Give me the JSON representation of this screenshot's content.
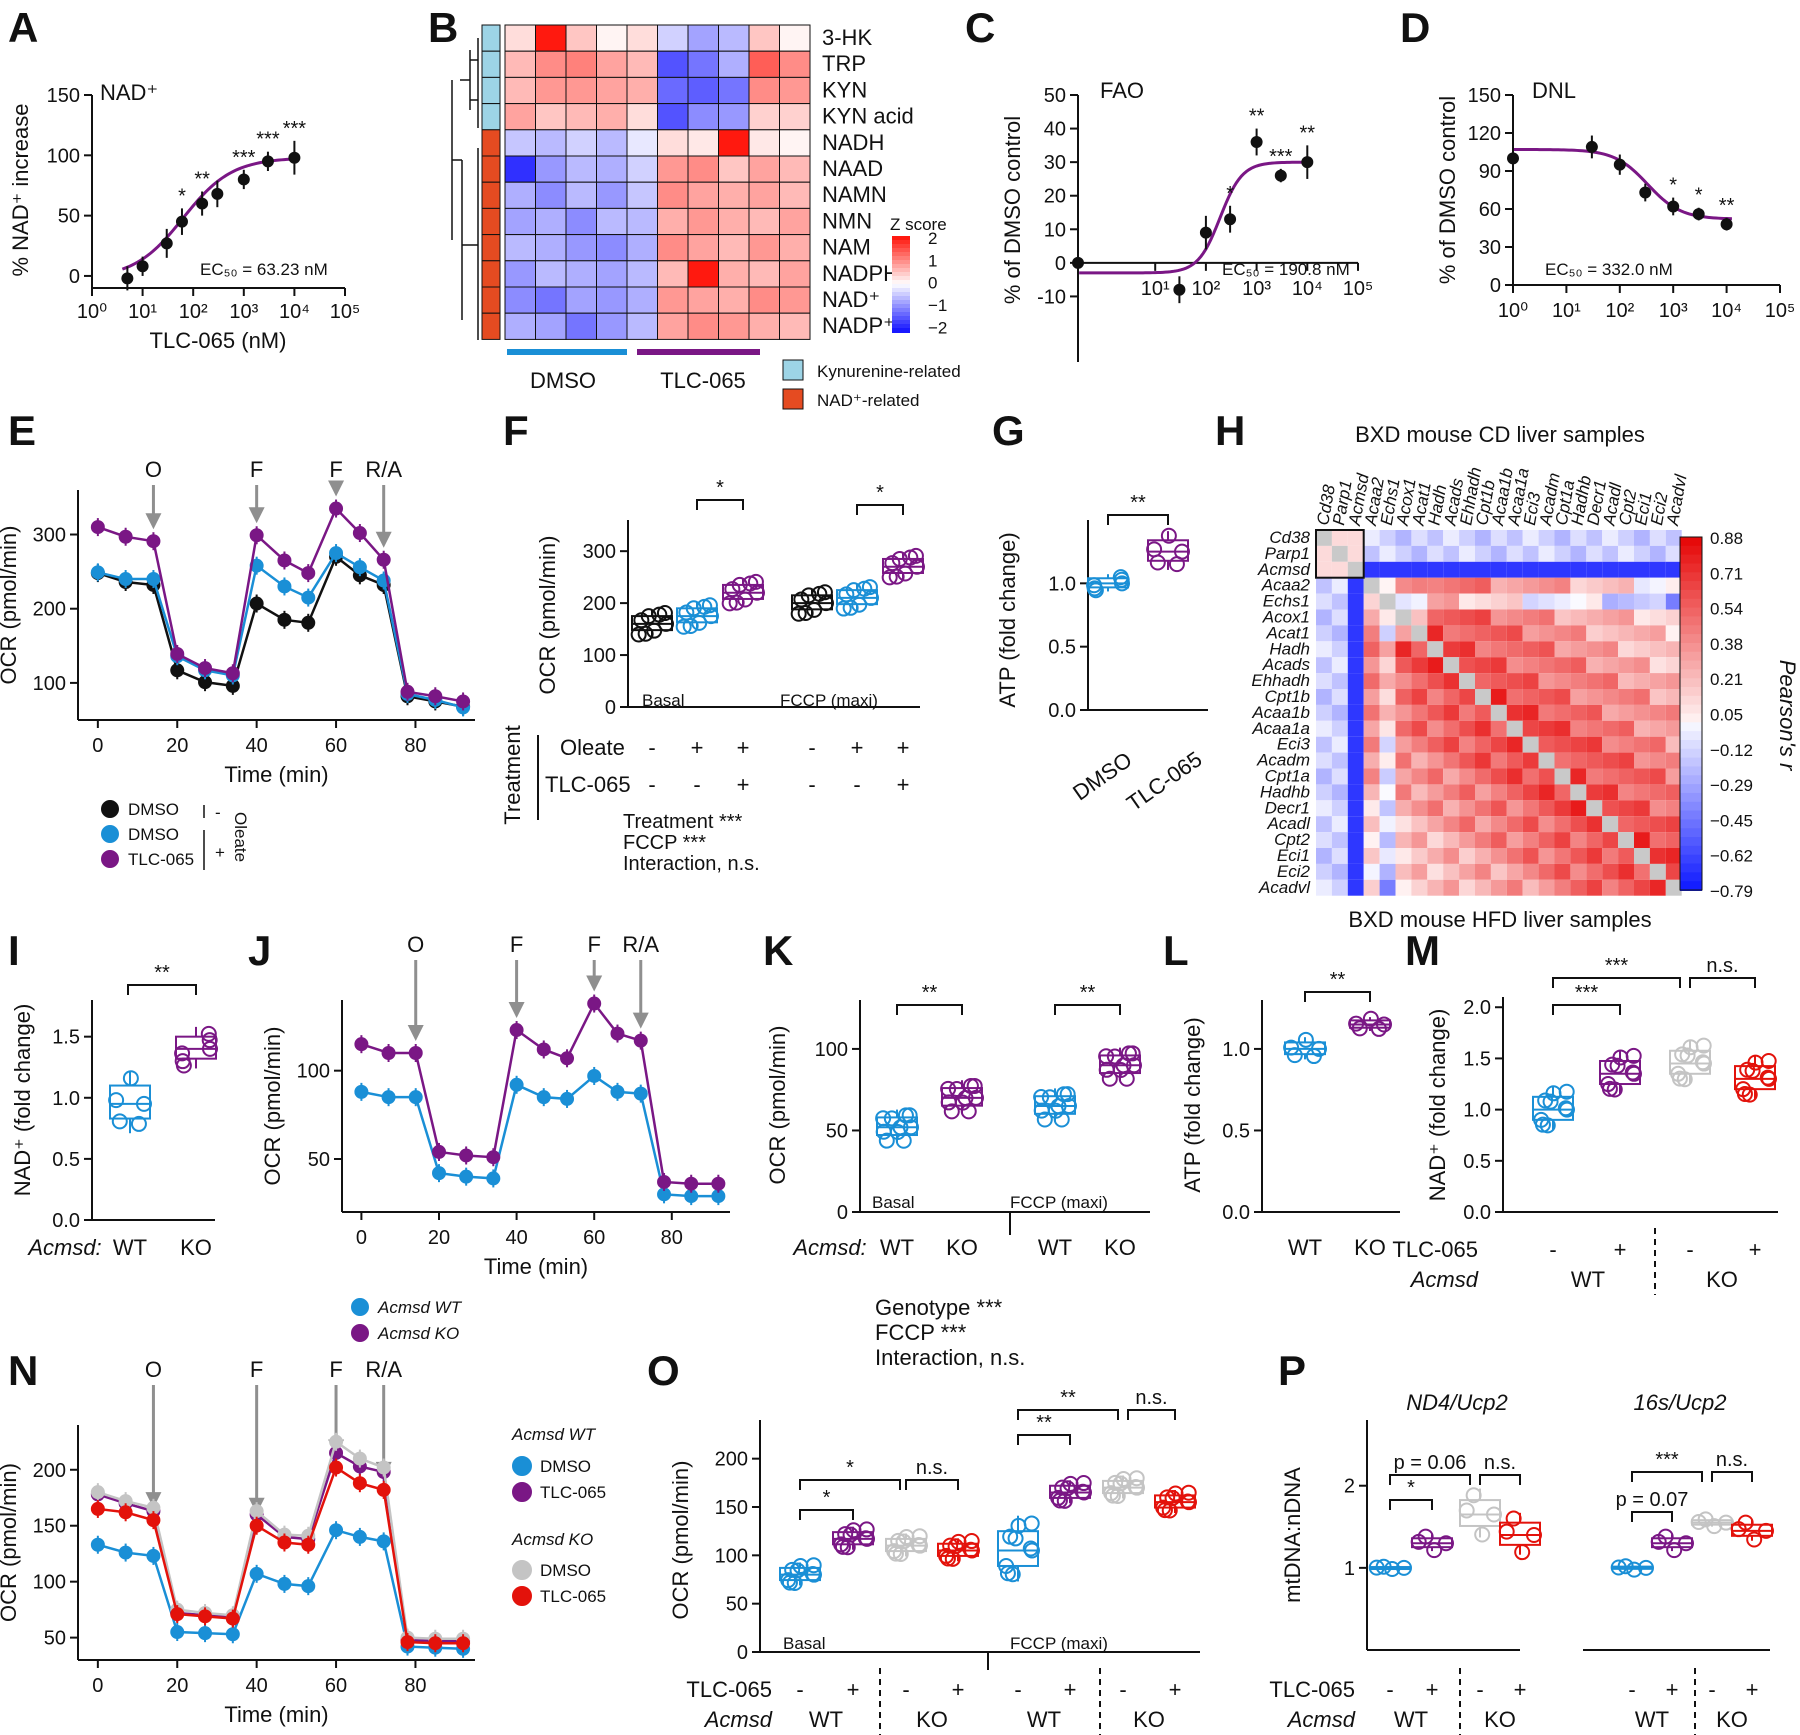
{
  "figure_colors": {
    "wt_dmso": "#1a8fd6",
    "ko_dmso": "#c4c4c4",
    "tlc": "#7a1785",
    "ko_tlc": "#e3120b",
    "black": "#111111",
    "purple_line": "#7a1785",
    "arrow": "#8f8f8f",
    "kyn": "#9dd4e6",
    "nad": "#e54b21"
  },
  "chart_data": [
    {
      "panel": "A",
      "type": "line",
      "title": "NAD⁺",
      "xlabel": "TLC-065 (nM)",
      "ylabel": "% NAD⁺ increase",
      "xscale": "log",
      "xlim": [
        1,
        100000
      ],
      "ylim": [
        -10,
        150
      ],
      "xticks": [
        "10⁰",
        "10¹",
        "10²",
        "10³",
        "10⁴",
        "10⁵"
      ],
      "yticks": [
        "0",
        "50",
        "100",
        "150"
      ],
      "x": [
        5,
        10,
        30,
        60,
        150,
        300,
        1000,
        3000,
        10000
      ],
      "y": [
        -2,
        8,
        27,
        45,
        60,
        68,
        80,
        95,
        98
      ],
      "err": [
        10,
        8,
        12,
        11,
        10,
        11,
        8,
        8,
        14
      ],
      "stars": [
        "",
        "",
        "",
        "*",
        "**",
        "",
        "***",
        "***",
        "***"
      ],
      "annotation": "EC₅₀ = 63.23 nM"
    },
    {
      "panel": "B",
      "type": "heatmap",
      "title": "Z score",
      "rows": [
        "3-HK",
        "TRP",
        "KYN",
        "KYN acid",
        "NADH",
        "NAAD",
        "NAMN",
        "NMN",
        "NAM",
        "NADPH",
        "NAD⁺",
        "NADP⁺"
      ],
      "row_groups": [
        "Kynurenine-related",
        "Kynurenine-related",
        "Kynurenine-related",
        "Kynurenine-related",
        "NAD⁺-related",
        "NAD⁺-related",
        "NAD⁺-related",
        "NAD⁺-related",
        "NAD⁺-related",
        "NAD⁺-related",
        "NAD⁺-related",
        "NAD⁺-related"
      ],
      "groups": [
        "DMSO",
        "TLC-065"
      ],
      "scale_ticks": [
        "2",
        "1",
        "0",
        "−1",
        "−2"
      ],
      "legend": [
        "Kynurenine-related",
        "NAD⁺-related"
      ],
      "values": [
        [
          0.3,
          2,
          0.5,
          0.1,
          0.3,
          -0.4,
          -0.8,
          -0.6,
          0.5,
          0.1
        ],
        [
          0.6,
          1.0,
          1.1,
          0.8,
          0.6,
          -1.5,
          -1.2,
          -0.7,
          1.4,
          1.0
        ],
        [
          0.6,
          0.9,
          0.9,
          0.8,
          0.7,
          -1.3,
          -1.4,
          -1.2,
          1.0,
          0.9
        ],
        [
          0.8,
          0.5,
          0.6,
          0.7,
          0.3,
          -1.5,
          -1.0,
          -0.9,
          0.4,
          0.4
        ],
        [
          -0.5,
          -0.6,
          -0.4,
          -0.6,
          -0.2,
          0.3,
          0.2,
          2,
          0.2,
          0.1
        ],
        [
          -1.8,
          -0.9,
          -0.6,
          -0.7,
          -0.4,
          0.9,
          1.0,
          0.5,
          0.8,
          0.6
        ],
        [
          -0.7,
          -1.0,
          -0.6,
          -0.9,
          -0.5,
          1.0,
          0.8,
          0.7,
          0.8,
          0.6
        ],
        [
          -0.8,
          -0.7,
          -1.0,
          -0.6,
          -0.6,
          0.7,
          0.9,
          0.7,
          0.6,
          0.8
        ],
        [
          -0.6,
          -0.7,
          -0.9,
          -1.0,
          -0.7,
          1.0,
          0.8,
          0.6,
          0.9,
          0.7
        ],
        [
          -0.9,
          -0.6,
          -0.7,
          -0.8,
          -0.6,
          0.6,
          2,
          0.7,
          0.6,
          0.8
        ],
        [
          -1.0,
          -1.2,
          -0.8,
          -0.9,
          -0.7,
          0.9,
          0.8,
          0.7,
          1.0,
          0.9
        ],
        [
          -0.7,
          -0.8,
          -1.2,
          -0.9,
          -0.6,
          0.8,
          1.0,
          0.9,
          0.7,
          0.6
        ]
      ]
    },
    {
      "panel": "C",
      "type": "line",
      "title": "FAO",
      "ylabel": "% of DMSO control",
      "xscale": "log",
      "xlim": [
        0.3,
        100000
      ],
      "ylim": [
        -20,
        50
      ],
      "xticks": [
        "10¹",
        "10²",
        "10³",
        "10⁴",
        "10⁵"
      ],
      "yticks": [
        "-10",
        "0",
        "10",
        "20",
        "30",
        "40",
        "50"
      ],
      "x": [
        0.3,
        30,
        100,
        300,
        1000,
        3000,
        10000
      ],
      "y": [
        0,
        -8,
        9,
        13,
        36,
        26,
        30
      ],
      "err": [
        3,
        4,
        5,
        4,
        4,
        2,
        5
      ],
      "stars": [
        "",
        "",
        "",
        "*",
        "**",
        "***",
        "**"
      ],
      "annotation": "EC₅₀ = 190.8 nM"
    },
    {
      "panel": "D",
      "type": "line",
      "title": "DNL",
      "ylabel": "% of DMSO control",
      "xscale": "log",
      "xlim": [
        1,
        100000
      ],
      "ylim": [
        0,
        150
      ],
      "xticks": [
        "10⁰",
        "10¹",
        "10²",
        "10³",
        "10⁴",
        "10⁵"
      ],
      "yticks": [
        "0",
        "30",
        "60",
        "90",
        "120",
        "150"
      ],
      "x": [
        1,
        30,
        100,
        300,
        1000,
        3000,
        10000
      ],
      "y": [
        100,
        109,
        95,
        73,
        62,
        56,
        48
      ],
      "err": [
        10,
        9,
        8,
        7,
        7,
        5,
        5
      ],
      "stars": [
        "",
        "",
        "",
        "",
        "*",
        "*",
        "**"
      ],
      "annotation": "EC₅₀ = 332.0 nM"
    },
    {
      "panel": "E",
      "type": "line",
      "xlabel": "Time (min)",
      "ylabel": "OCR (pmol/min)",
      "xlim": [
        -5,
        95
      ],
      "ylim": [
        50,
        360
      ],
      "xticks": [
        "0",
        "20",
        "40",
        "60",
        "80"
      ],
      "yticks": [
        "100",
        "200",
        "300"
      ],
      "events": [
        "O",
        "F",
        "F",
        "R/A"
      ],
      "event_x": [
        14,
        40,
        60,
        72
      ],
      "x": [
        0,
        7,
        14,
        20,
        27,
        34,
        40,
        47,
        53,
        60,
        66,
        72,
        78,
        85,
        92
      ],
      "series": [
        {
          "name": "DMSO",
          "values": [
            248,
            236,
            232,
            117,
            101,
            96,
            207,
            185,
            181,
            270,
            245,
            232,
            82,
            75,
            68
          ]
        },
        {
          "name": "DMSO",
          "values": [
            249,
            240,
            240,
            136,
            117,
            110,
            258,
            230,
            215,
            275,
            256,
            238,
            85,
            77,
            67
          ]
        },
        {
          "name": "TLC-065",
          "values": [
            310,
            297,
            291,
            139,
            120,
            113,
            299,
            265,
            248,
            335,
            302,
            266,
            88,
            82,
            75
          ]
        }
      ],
      "legend": [
        "DMSO",
        "DMSO",
        "TLC-065"
      ],
      "legend_groups": [
        "-",
        "+"
      ],
      "legend_group_title": "Oleate"
    },
    {
      "panel": "F",
      "type": "box",
      "ylabel": "OCR (pmol/min)",
      "ylim": [
        0,
        360
      ],
      "yticks": [
        "0",
        "100",
        "200",
        "300"
      ],
      "sections": [
        "Basal",
        "FCCP (maxi)"
      ],
      "row_labels": [
        "Oleate",
        "TLC-065"
      ],
      "side_label": "Treatment",
      "row_values": [
        "-",
        "+",
        "+",
        "-",
        "+",
        "+"
      ],
      "row_values2": [
        "-",
        "-",
        "+",
        "-",
        "-",
        "+"
      ],
      "medians": [
        160,
        175,
        220,
        200,
        210,
        270
      ],
      "stars": [
        "*",
        "*"
      ],
      "stats": [
        "Treatment ***",
        "FCCP ***",
        "Interaction, n.s."
      ]
    },
    {
      "panel": "G",
      "type": "box",
      "ylabel": "ATP (fold change)",
      "ylim": [
        0,
        1.5
      ],
      "yticks": [
        "0.0",
        "0.5",
        "1.0"
      ],
      "categories": [
        "DMSO",
        "TLC-065"
      ],
      "medians": [
        1.0,
        1.25
      ],
      "stars": "**"
    },
    {
      "panel": "H",
      "type": "heatmap",
      "title": "BXD mouse CD liver samples",
      "bottom_title": "BXD mouse HFD liver samples",
      "genes": [
        "Cd38",
        "Parp1",
        "Acmsd",
        "Acaa2",
        "Echs1",
        "Acox1",
        "Acat1",
        "Hadh",
        "Acads",
        "Ehhadh",
        "Cpt1b",
        "Acaa1b",
        "Acaa1a",
        "Eci3",
        "Acadm",
        "Cpt1a",
        "Hadhb",
        "Decr1",
        "Acadl",
        "Cpt2",
        "Eci1",
        "Eci2",
        "Acadvl"
      ],
      "colorbar_label": "Pearson's r",
      "scale_ticks": [
        "0.88",
        "0.71",
        "0.54",
        "0.38",
        "0.21",
        "0.05",
        "−0.12",
        "−0.29",
        "−0.45",
        "−0.62",
        "−0.79"
      ]
    },
    {
      "panel": "I",
      "type": "box",
      "ylabel": "NAD⁺ (fold change)",
      "ylim": [
        0,
        1.8
      ],
      "yticks": [
        "0.0",
        "0.5",
        "1.0",
        "1.5"
      ],
      "categories": [
        "WT",
        "KO"
      ],
      "group_label": "Acmsd:",
      "medians": [
        0.95,
        1.4
      ],
      "stars": "**"
    },
    {
      "panel": "J",
      "type": "line",
      "xlabel": "Time (min)",
      "ylabel": "OCR (pmol/min)",
      "ylim": [
        20,
        140
      ],
      "xticks": [
        "0",
        "20",
        "40",
        "60",
        "80"
      ],
      "yticks": [
        "50",
        "100"
      ],
      "events": [
        "O",
        "F",
        "F",
        "R/A"
      ],
      "x": [
        0,
        7,
        14,
        20,
        27,
        34,
        40,
        47,
        53,
        60,
        66,
        72,
        78,
        85,
        92
      ],
      "series": [
        {
          "name": "Acmsd WT",
          "values": [
            88,
            85,
            85,
            42,
            40,
            39,
            92,
            85,
            84,
            97,
            88,
            87,
            30,
            29,
            29
          ]
        },
        {
          "name": "Acmsd KO",
          "values": [
            115,
            110,
            110,
            54,
            52,
            51,
            123,
            112,
            107,
            138,
            121,
            117,
            37,
            36,
            36
          ]
        }
      ]
    },
    {
      "panel": "K",
      "type": "box",
      "ylabel": "OCR (pmol/min)",
      "ylim": [
        0,
        130
      ],
      "yticks": [
        "0",
        "50",
        "100"
      ],
      "sections": [
        "Basal",
        "FCCP (maxi)"
      ],
      "categories": [
        "WT",
        "KO",
        "WT",
        "KO"
      ],
      "group_label": "Acmsd:",
      "medians": [
        52,
        70,
        65,
        90
      ],
      "stars": [
        "**",
        "**"
      ],
      "stats": [
        "Genotype ***",
        "FCCP ***",
        "Interaction, n.s."
      ]
    },
    {
      "panel": "L",
      "type": "box",
      "ylabel": "ATP (fold change)",
      "ylim": [
        0,
        1.3
      ],
      "yticks": [
        "0.0",
        "0.5",
        "1.0"
      ],
      "categories": [
        "WT",
        "KO"
      ],
      "medians": [
        1.0,
        1.15
      ],
      "stars": "**"
    },
    {
      "panel": "M",
      "type": "box",
      "ylabel": "NAD⁺ (fold change)",
      "ylim": [
        0,
        2.1
      ],
      "yticks": [
        "0.0",
        "0.5",
        "1.0",
        "1.5",
        "2.0"
      ],
      "row_labels": [
        "TLC-065",
        "Acmsd"
      ],
      "treatment": [
        "-",
        "+",
        "-",
        "+"
      ],
      "genotypes": [
        "WT",
        "KO"
      ],
      "medians": [
        1.0,
        1.35,
        1.45,
        1.3
      ],
      "stars": [
        "***",
        "***",
        "n.s."
      ]
    },
    {
      "panel": "N",
      "type": "line",
      "xlabel": "Time (min)",
      "ylabel": "OCR (pmol/min)",
      "ylim": [
        30,
        240
      ],
      "xticks": [
        "0",
        "20",
        "40",
        "60",
        "80"
      ],
      "yticks": [
        "50",
        "100",
        "150",
        "200"
      ],
      "events": [
        "O",
        "F",
        "F",
        "R/A"
      ],
      "x": [
        0,
        7,
        14,
        20,
        27,
        34,
        40,
        47,
        53,
        60,
        66,
        72,
        78,
        85,
        92
      ],
      "legend_groups": [
        "Acmsd WT",
        "Acmsd KO"
      ],
      "legend": [
        "DMSO",
        "TLC-065",
        "DMSO",
        "TLC-065"
      ],
      "series": [
        {
          "name": "WT DMSO",
          "values": [
            133,
            126,
            123,
            55,
            54,
            53,
            107,
            98,
            96,
            146,
            140,
            136,
            42,
            41,
            40
          ]
        },
        {
          "name": "WT TLC-065",
          "values": [
            178,
            170,
            163,
            72,
            70,
            68,
            160,
            140,
            138,
            215,
            203,
            198,
            48,
            47,
            47
          ]
        },
        {
          "name": "KO DMSO",
          "values": [
            180,
            172,
            166,
            75,
            72,
            70,
            163,
            142,
            141,
            225,
            210,
            202,
            50,
            49,
            49
          ]
        },
        {
          "name": "KO TLC-065",
          "values": [
            165,
            162,
            155,
            71,
            69,
            67,
            150,
            135,
            133,
            202,
            188,
            182,
            46,
            45,
            45
          ]
        }
      ]
    },
    {
      "panel": "O",
      "type": "box",
      "ylabel": "OCR (pmol/min)",
      "ylim": [
        0,
        240
      ],
      "yticks": [
        "0",
        "50",
        "100",
        "150",
        "200"
      ],
      "sections": [
        "Basal",
        "FCCP (maxi)"
      ],
      "row_labels": [
        "TLC-065",
        "Acmsd"
      ],
      "treatment": [
        "-",
        "+",
        "-",
        "+",
        "-",
        "+",
        "-",
        "+"
      ],
      "genotypes": [
        "WT",
        "KO",
        "WT",
        "KO"
      ],
      "medians": [
        80,
        117,
        110,
        105,
        105,
        165,
        170,
        155
      ],
      "stars": [
        "*",
        "*",
        "n.s.",
        "**",
        "**",
        "n.s."
      ]
    },
    {
      "panel": "P",
      "type": "box",
      "ylabel": "mtDNA:nDNA",
      "ylim": [
        0,
        2.8
      ],
      "yticks": [
        "1",
        "2"
      ],
      "subtitles": [
        "ND4/Ucp2",
        "16s/Ucp2"
      ],
      "row_labels": [
        "TLC-065",
        "Acmsd"
      ],
      "treatment": [
        "-",
        "+",
        "-",
        "+",
        "-",
        "+",
        "-",
        "+"
      ],
      "genotypes": [
        "WT",
        "KO",
        "WT",
        "KO"
      ],
      "medians": [
        1.0,
        1.3,
        1.65,
        1.4,
        1.0,
        1.3,
        1.55,
        1.45
      ],
      "stars": [
        "*",
        "p = 0.06",
        "n.s.",
        "p = 0.07",
        "***",
        "n.s."
      ]
    }
  ]
}
